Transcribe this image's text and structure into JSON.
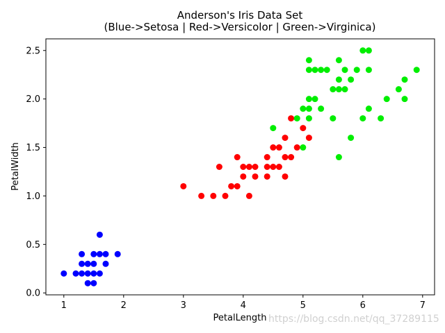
{
  "chart_data": {
    "type": "scatter",
    "title_lines": [
      "Anderson's Iris Data Set",
      "(Blue->Setosa | Red->Versicolor | Green->Virginica)"
    ],
    "xlabel": "PetalLength",
    "ylabel": "PetalWidth",
    "xlim": [
      0.7,
      7.2
    ],
    "ylim": [
      -0.02,
      2.62
    ],
    "xticks": [
      1,
      2,
      3,
      4,
      5,
      6,
      7
    ],
    "yticks": [
      0.0,
      0.5,
      1.0,
      1.5,
      2.0,
      2.5
    ],
    "ytick_labels": [
      "0.0",
      "0.5",
      "1.0",
      "1.5",
      "2.0",
      "2.5"
    ],
    "grid": false,
    "series": [
      {
        "color": "#0000ff",
        "points": [
          [
            1.0,
            0.2
          ],
          [
            1.2,
            0.2
          ],
          [
            1.3,
            0.2
          ],
          [
            1.3,
            0.3
          ],
          [
            1.3,
            0.4
          ],
          [
            1.4,
            0.1
          ],
          [
            1.4,
            0.2
          ],
          [
            1.4,
            0.3
          ],
          [
            1.5,
            0.1
          ],
          [
            1.5,
            0.2
          ],
          [
            1.5,
            0.3
          ],
          [
            1.5,
            0.4
          ],
          [
            1.6,
            0.2
          ],
          [
            1.6,
            0.4
          ],
          [
            1.6,
            0.6
          ],
          [
            1.7,
            0.3
          ],
          [
            1.7,
            0.4
          ],
          [
            1.9,
            0.4
          ]
        ]
      },
      {
        "color": "#ff0000",
        "points": [
          [
            3.0,
            1.1
          ],
          [
            3.3,
            1.0
          ],
          [
            3.5,
            1.0
          ],
          [
            3.6,
            1.3
          ],
          [
            3.7,
            1.0
          ],
          [
            3.8,
            1.1
          ],
          [
            3.9,
            1.1
          ],
          [
            3.9,
            1.4
          ],
          [
            4.0,
            1.2
          ],
          [
            4.0,
            1.3
          ],
          [
            4.1,
            1.0
          ],
          [
            4.1,
            1.3
          ],
          [
            4.2,
            1.2
          ],
          [
            4.2,
            1.3
          ],
          [
            4.4,
            1.2
          ],
          [
            4.4,
            1.3
          ],
          [
            4.4,
            1.4
          ],
          [
            4.5,
            1.3
          ],
          [
            4.5,
            1.5
          ],
          [
            4.6,
            1.3
          ],
          [
            4.6,
            1.5
          ],
          [
            4.7,
            1.2
          ],
          [
            4.7,
            1.4
          ],
          [
            4.7,
            1.6
          ],
          [
            4.8,
            1.4
          ],
          [
            4.8,
            1.8
          ],
          [
            4.9,
            1.5
          ],
          [
            5.0,
            1.7
          ],
          [
            5.1,
            1.6
          ]
        ]
      },
      {
        "color": "#00ee00",
        "points": [
          [
            4.5,
            1.7
          ],
          [
            4.9,
            1.8
          ],
          [
            5.0,
            1.5
          ],
          [
            5.0,
            1.9
          ],
          [
            5.1,
            1.8
          ],
          [
            5.1,
            1.9
          ],
          [
            5.1,
            2.0
          ],
          [
            5.1,
            2.3
          ],
          [
            5.1,
            2.4
          ],
          [
            5.2,
            2.0
          ],
          [
            5.2,
            2.3
          ],
          [
            5.3,
            1.9
          ],
          [
            5.3,
            2.3
          ],
          [
            5.4,
            2.3
          ],
          [
            5.5,
            1.8
          ],
          [
            5.5,
            2.1
          ],
          [
            5.6,
            1.4
          ],
          [
            5.6,
            2.1
          ],
          [
            5.6,
            2.2
          ],
          [
            5.6,
            2.4
          ],
          [
            5.7,
            2.1
          ],
          [
            5.7,
            2.3
          ],
          [
            5.8,
            1.6
          ],
          [
            5.8,
            2.2
          ],
          [
            5.9,
            2.3
          ],
          [
            6.0,
            1.8
          ],
          [
            6.0,
            2.5
          ],
          [
            6.1,
            1.9
          ],
          [
            6.1,
            2.3
          ],
          [
            6.1,
            2.5
          ],
          [
            6.3,
            1.8
          ],
          [
            6.4,
            2.0
          ],
          [
            6.6,
            2.1
          ],
          [
            6.7,
            2.0
          ],
          [
            6.7,
            2.2
          ],
          [
            6.9,
            2.3
          ]
        ]
      }
    ]
  },
  "watermark": "https://blog.csdn.net/qq_37289115"
}
